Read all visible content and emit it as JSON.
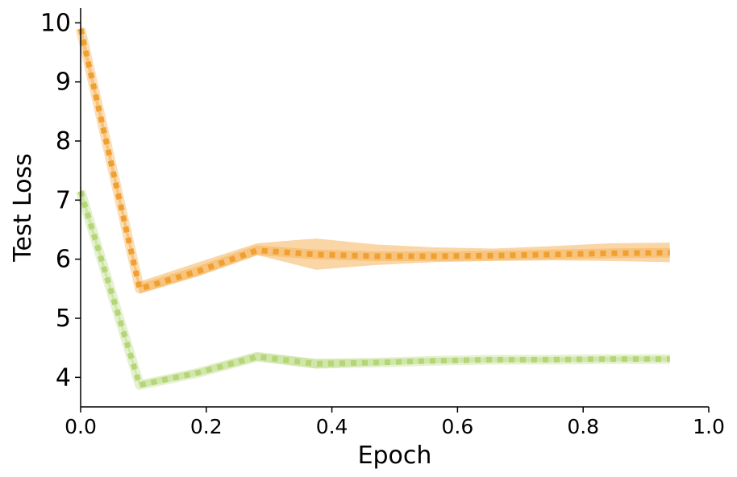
{
  "chart_data": {
    "type": "line",
    "title": "",
    "xlabel": "Epoch",
    "ylabel": "Test Loss",
    "xlim": [
      0.0,
      1.0
    ],
    "ylim": [
      3.5,
      10.25
    ],
    "xticks": [
      "0.0",
      "0.2",
      "0.4",
      "0.6",
      "0.8",
      "1.0"
    ],
    "yticks": [
      "4",
      "5",
      "6",
      "7",
      "8",
      "9",
      "10"
    ],
    "grid": false,
    "legend": "none",
    "series": [
      {
        "color": "#f0a030",
        "band_color": "#f8c888",
        "x": [
          0.0,
          0.094,
          0.188,
          0.281,
          0.375,
          0.469,
          0.563,
          0.656,
          0.75,
          0.844,
          0.938
        ],
        "y": [
          9.9,
          5.5,
          5.8,
          6.15,
          6.08,
          6.05,
          6.05,
          6.06,
          6.08,
          6.1,
          6.11
        ],
        "lower": [
          9.75,
          5.42,
          5.72,
          6.07,
          5.82,
          5.9,
          5.95,
          5.97,
          5.98,
          5.97,
          5.95
        ],
        "upper": [
          10.02,
          5.62,
          5.95,
          6.27,
          6.35,
          6.25,
          6.2,
          6.18,
          6.22,
          6.27,
          6.28
        ]
      },
      {
        "color": "#b5d678",
        "band_color": "#d5e8b0",
        "x": [
          0.0,
          0.094,
          0.188,
          0.281,
          0.375,
          0.469,
          0.563,
          0.656,
          0.75,
          0.844,
          0.938
        ],
        "y": [
          7.15,
          3.87,
          4.08,
          4.35,
          4.23,
          4.25,
          4.28,
          4.3,
          4.3,
          4.31,
          4.31
        ],
        "lower": [
          7.05,
          3.82,
          4.03,
          4.28,
          4.15,
          4.2,
          4.24,
          4.26,
          4.26,
          4.27,
          4.27
        ],
        "upper": [
          7.25,
          3.93,
          4.14,
          4.42,
          4.31,
          4.31,
          4.33,
          4.34,
          4.34,
          4.35,
          4.35
        ]
      }
    ]
  }
}
